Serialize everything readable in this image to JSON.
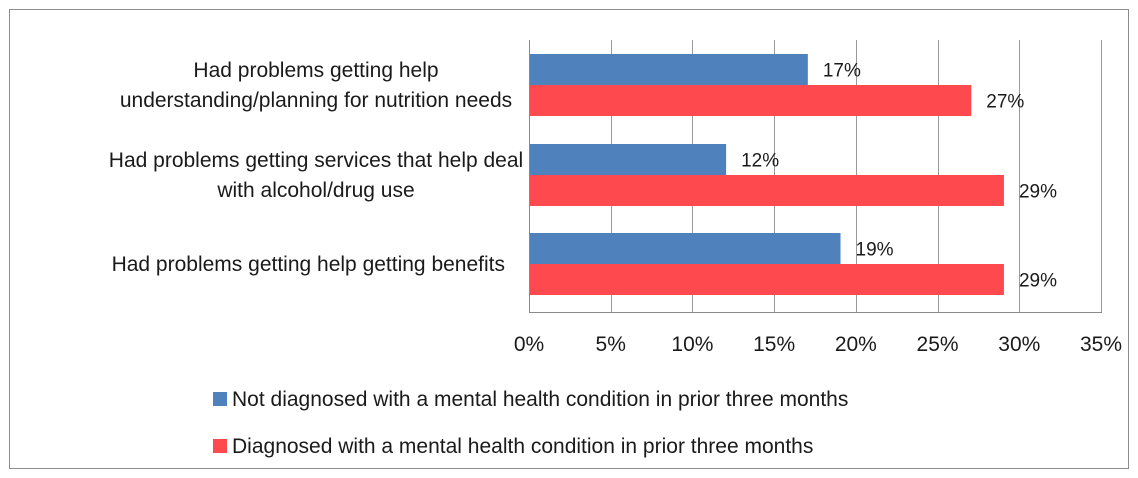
{
  "chart_data": {
    "type": "bar",
    "orientation": "horizontal",
    "title": "",
    "xlabel": "",
    "ylabel": "",
    "categories": [
      [
        "Had problems getting help",
        "understanding/planning for nutrition needs"
      ],
      [
        "Had problems getting services that help deal",
        "with alcohol/drug use"
      ],
      [
        "Had problems getting help getting benefits"
      ]
    ],
    "series": [
      {
        "name": "Not diagnosed with a mental health condition in prior three months",
        "color": "#4f81bd",
        "values": [
          17,
          12,
          19
        ],
        "labels": [
          "17%",
          "12%",
          "19%"
        ]
      },
      {
        "name": "Diagnosed with a mental health condition in prior three months",
        "color": "#fe4a4f",
        "values": [
          27,
          29,
          29
        ],
        "labels": [
          "27%",
          "29%",
          "29%"
        ]
      }
    ],
    "xlim": [
      0,
      35
    ],
    "xticks": [
      0,
      5,
      10,
      15,
      20,
      25,
      30,
      35
    ],
    "xtick_labels": [
      "0%",
      "5%",
      "10%",
      "15%",
      "20%",
      "25%",
      "30%",
      "35%"
    ],
    "grid": "vertical",
    "legend_position": "bottom"
  }
}
